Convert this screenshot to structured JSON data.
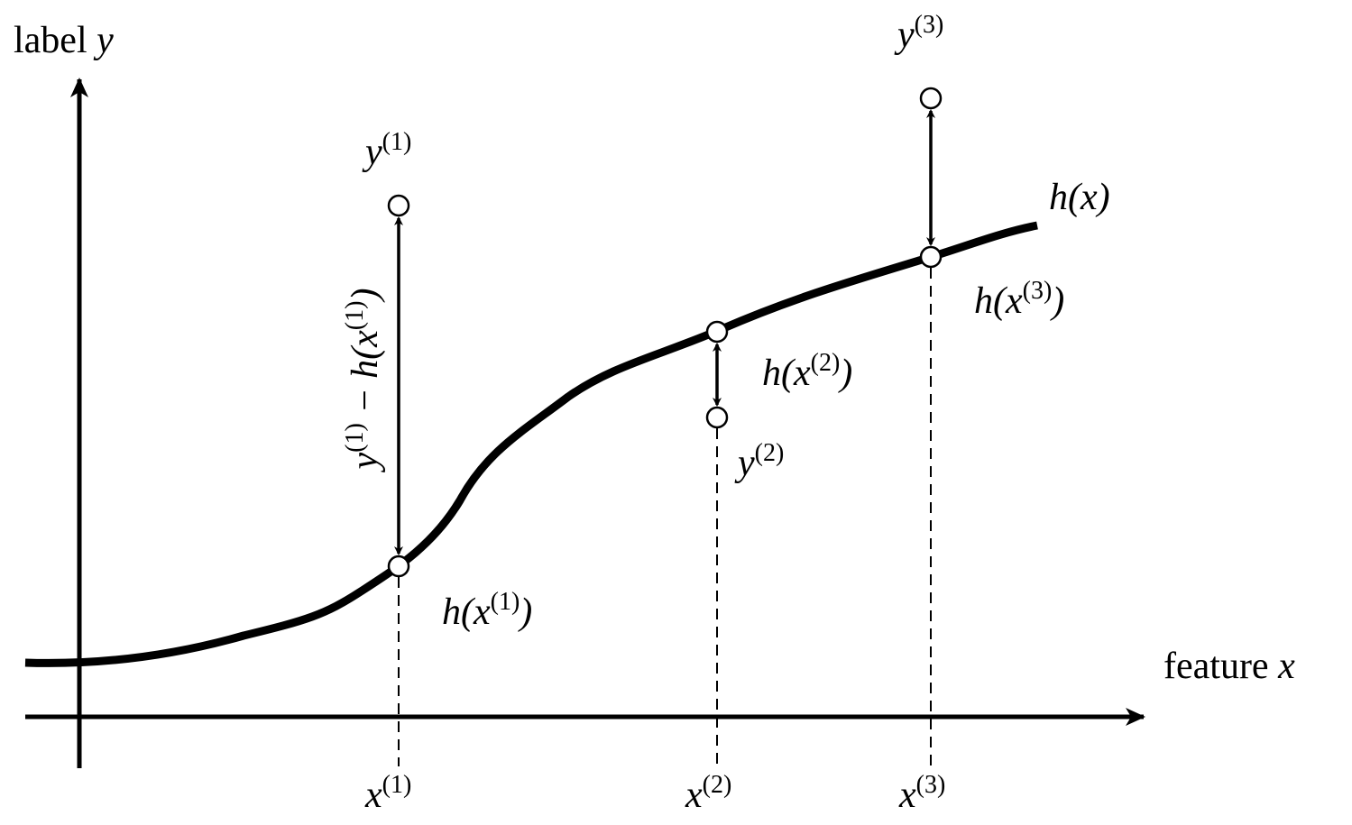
{
  "axes": {
    "y_label": {
      "word": "label",
      "var": "y"
    },
    "x_label": {
      "word": "feature",
      "var": "x"
    }
  },
  "curve_label": "h(x)",
  "points": [
    {
      "x": {
        "base": "x",
        "sup": "(1)"
      },
      "y": {
        "base": "y",
        "sup": "(1)"
      },
      "h": {
        "pre": "h(x",
        "sup": "(1)",
        "post": ")"
      }
    },
    {
      "x": {
        "base": "x",
        "sup": "(2)"
      },
      "y": {
        "base": "y",
        "sup": "(2)"
      },
      "h": {
        "pre": "h(x",
        "sup": "(2)",
        "post": ")"
      }
    },
    {
      "x": {
        "base": "x",
        "sup": "(3)"
      },
      "y": {
        "base": "y",
        "sup": "(3)"
      },
      "h": {
        "pre": "h(x",
        "sup": "(3)",
        "post": ")"
      }
    }
  ],
  "residual_label": {
    "y": "y",
    "ysup": "(1)",
    "mid": " − h(x",
    "hsup": "(1)",
    "post": ")"
  }
}
